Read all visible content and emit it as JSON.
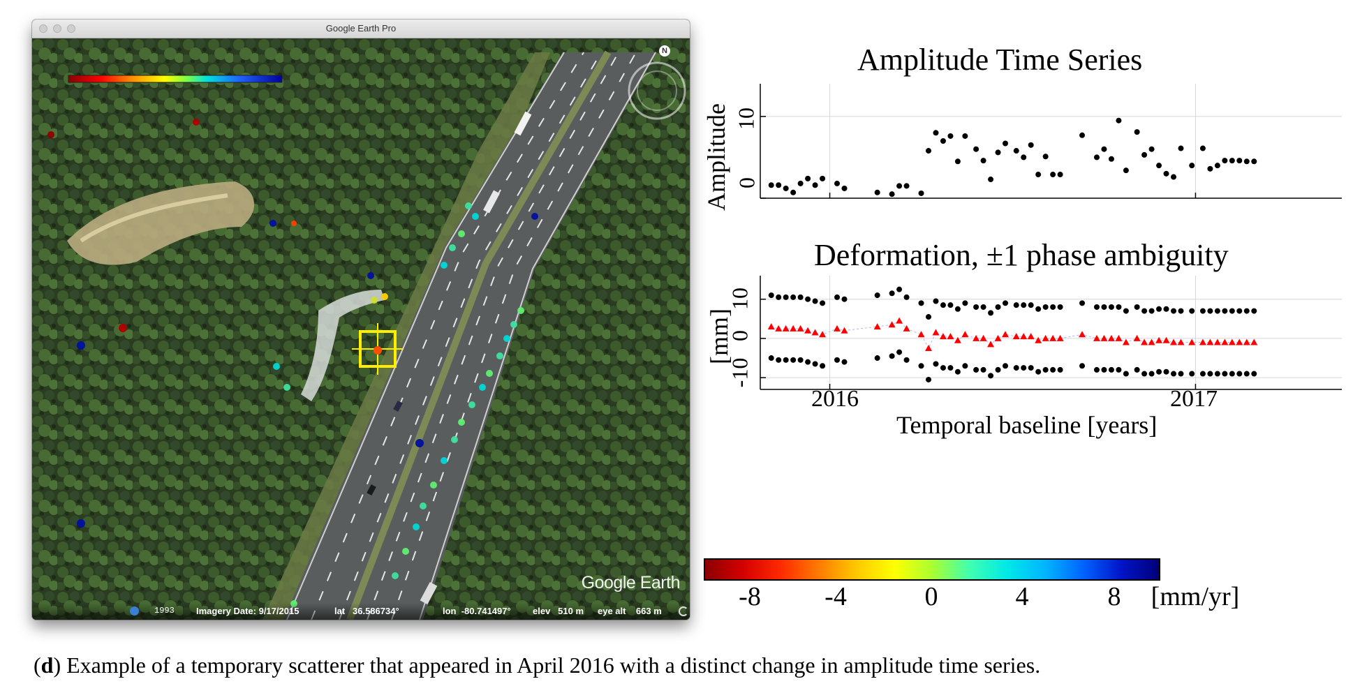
{
  "window": {
    "title": "Google Earth Pro",
    "map_legend_colors": [
      "#8b0000",
      "#ff0000",
      "#ff8c00",
      "#ffff00",
      "#7fff00",
      "#00e0e0",
      "#00bfff",
      "#1e64ff",
      "#0000a0"
    ]
  },
  "map": {
    "logo": "Google Earth",
    "statusbar": {
      "year": "1993",
      "imagery_date": "Imagery Date: 9/17/2015",
      "lat": "lat   36.586734°",
      "lon": "lon  -80.741497°",
      "elev": "elev   510 m",
      "eye_alt": "eye alt    663 m"
    }
  },
  "amplitude_chart": {
    "title": "Amplitude Time Series",
    "ylabel": "Amplitude",
    "y_ticks": [
      "0",
      "10"
    ]
  },
  "deformation_chart": {
    "title": "Deformation, ±1 phase ambiguity",
    "ylabel": "[mm]",
    "y_ticks": [
      "-10",
      "0",
      "10"
    ],
    "x_ticks": [
      "2016",
      "2017"
    ],
    "xlabel": "Temporal baseline [years]"
  },
  "colorbar": {
    "ticks": [
      "-8",
      "-4",
      "0",
      "4",
      "8"
    ],
    "unit": "[mm/yr]",
    "colors": [
      "#8b0000",
      "#d40000",
      "#ff2a00",
      "#ff7a00",
      "#ffc800",
      "#ffff00",
      "#aaff30",
      "#40ffb0",
      "#00e8e8",
      "#00b4ff",
      "#0064ff",
      "#0014c8",
      "#000078"
    ]
  },
  "caption": {
    "label": "d",
    "text": ") Example of a temporary scatterer that appeared in April 2016 with a distinct change in amplitude time series."
  },
  "chart_data": [
    {
      "type": "scatter",
      "title": "Amplitude Time Series",
      "xlabel": "",
      "ylabel": "Amplitude",
      "xlim": [
        2015.81,
        2017.4
      ],
      "ylim": [
        0,
        14
      ],
      "x_ticks": [
        2016,
        2017
      ],
      "y_ticks": [
        0,
        10
      ],
      "grid": true,
      "series": [
        {
          "x": [
            2015.84,
            2015.86,
            2015.88,
            2015.9,
            2015.92,
            2015.94,
            2015.96,
            2015.98,
            2016.02,
            2016.04,
            2016.13,
            2016.17,
            2016.19,
            2016.21,
            2016.25,
            2016.27,
            2016.29,
            2016.31,
            2016.33,
            2016.35,
            2016.37,
            2016.4,
            2016.42,
            2016.44,
            2016.46,
            2016.48,
            2016.51,
            2016.53,
            2016.55,
            2016.57,
            2016.59,
            2016.61,
            2016.63,
            2016.69,
            2016.73,
            2016.75,
            2016.77,
            2016.79,
            2016.81,
            2016.84,
            2016.86,
            2016.88,
            2016.9,
            2016.92,
            2016.94,
            2016.96,
            2016.99,
            2017.02,
            2017.04,
            2017.06,
            2017.08,
            2017.1,
            2017.12,
            2017.14,
            2017.16
          ],
          "y": [
            1.6,
            1.6,
            1.2,
            0.7,
            1.8,
            2.4,
            1.6,
            2.4,
            1.8,
            1.2,
            0.7,
            0.5,
            1.5,
            1.5,
            0.6,
            5.8,
            8.0,
            7.0,
            7.6,
            4.5,
            7.6,
            6.0,
            4.6,
            2.3,
            5.6,
            6.7,
            5.8,
            5.0,
            6.5,
            2.9,
            5.1,
            2.9,
            2.9,
            7.7,
            5.0,
            6.0,
            4.8,
            9.5,
            3.4,
            8.1,
            5.3,
            6.0,
            4.0,
            3.0,
            2.6,
            6.1,
            4.0,
            6.1,
            3.6,
            4.0,
            4.6,
            4.6,
            4.6,
            4.5,
            4.5
          ],
          "marker": "dot",
          "color": "#000000"
        }
      ]
    },
    {
      "type": "scatter",
      "title": "Deformation, ±1 phase ambiguity",
      "xlabel": "Temporal baseline [years]",
      "ylabel": "[mm]",
      "xlim": [
        2015.81,
        2017.4
      ],
      "ylim": [
        -13,
        16
      ],
      "x_ticks": [
        2016,
        2017
      ],
      "y_ticks": [
        -10,
        0,
        10
      ],
      "grid": true,
      "series": [
        {
          "x": [
            2015.84,
            2015.86,
            2015.88,
            2015.9,
            2015.92,
            2015.94,
            2015.96,
            2015.98,
            2016.02,
            2016.04,
            2016.13,
            2016.17,
            2016.19,
            2016.21,
            2016.25,
            2016.27,
            2016.29,
            2016.31,
            2016.33,
            2016.35,
            2016.37,
            2016.4,
            2016.42,
            2016.44,
            2016.46,
            2016.48,
            2016.51,
            2016.53,
            2016.55,
            2016.57,
            2016.59,
            2016.61,
            2016.63,
            2016.69,
            2016.73,
            2016.75,
            2016.77,
            2016.79,
            2016.81,
            2016.84,
            2016.86,
            2016.88,
            2016.9,
            2016.92,
            2016.94,
            2016.96,
            2016.99,
            2017.02,
            2017.04,
            2017.06,
            2017.08,
            2017.1,
            2017.12,
            2017.14,
            2017.16
          ],
          "y": [
            3.0,
            2.5,
            2.5,
            2.5,
            2.5,
            2.0,
            1.5,
            1.0,
            2.5,
            2.0,
            3.0,
            3.5,
            4.5,
            2.5,
            1.0,
            -2.5,
            1.5,
            0.5,
            0.5,
            -0.5,
            1.0,
            0.0,
            0.0,
            -1.5,
            0.0,
            1.0,
            0.5,
            0.5,
            0.5,
            -0.5,
            0.0,
            0.0,
            0.0,
            1.0,
            0.0,
            0.0,
            0.0,
            0.0,
            -1.0,
            0.0,
            -1.0,
            -1.0,
            -0.5,
            -0.5,
            -1.0,
            -1.0,
            -1.0,
            -1.0,
            -1.0,
            -1.0,
            -1.0,
            -1.0,
            -1.0,
            -1.0,
            -1.0
          ],
          "marker": "triangle",
          "color": "#ff0000",
          "connect": true
        },
        {
          "x": [
            2015.84,
            2015.86,
            2015.88,
            2015.9,
            2015.92,
            2015.94,
            2015.96,
            2015.98,
            2016.02,
            2016.04,
            2016.13,
            2016.17,
            2016.19,
            2016.21,
            2016.25,
            2016.27,
            2016.29,
            2016.31,
            2016.33,
            2016.35,
            2016.37,
            2016.4,
            2016.42,
            2016.44,
            2016.46,
            2016.48,
            2016.51,
            2016.53,
            2016.55,
            2016.57,
            2016.59,
            2016.61,
            2016.63,
            2016.69,
            2016.73,
            2016.75,
            2016.77,
            2016.79,
            2016.81,
            2016.84,
            2016.86,
            2016.88,
            2016.9,
            2016.92,
            2016.94,
            2016.96,
            2016.99,
            2017.02,
            2017.04,
            2017.06,
            2017.08,
            2017.1,
            2017.12,
            2017.14,
            2017.16
          ],
          "y": [
            11,
            10.5,
            10.5,
            10.5,
            10.5,
            10,
            9.5,
            9,
            10.5,
            10,
            11,
            11.5,
            12.5,
            10.5,
            9,
            5.5,
            9.5,
            8.5,
            8.5,
            7.5,
            9,
            8,
            8,
            6.5,
            8,
            9,
            8.5,
            8.5,
            8.5,
            7.5,
            8,
            8,
            8,
            9,
            8,
            8,
            8,
            8,
            7,
            8,
            7,
            7,
            7.5,
            7.5,
            7,
            7,
            7,
            7,
            7,
            7,
            7,
            7,
            7,
            7,
            7
          ],
          "marker": "dot",
          "color": "#000000"
        },
        {
          "x": [
            2015.84,
            2015.86,
            2015.88,
            2015.9,
            2015.92,
            2015.94,
            2015.96,
            2015.98,
            2016.02,
            2016.04,
            2016.13,
            2016.17,
            2016.19,
            2016.21,
            2016.25,
            2016.27,
            2016.29,
            2016.31,
            2016.33,
            2016.35,
            2016.37,
            2016.4,
            2016.42,
            2016.44,
            2016.46,
            2016.48,
            2016.51,
            2016.53,
            2016.55,
            2016.57,
            2016.59,
            2016.61,
            2016.63,
            2016.69,
            2016.73,
            2016.75,
            2016.77,
            2016.79,
            2016.81,
            2016.84,
            2016.86,
            2016.88,
            2016.9,
            2016.92,
            2016.94,
            2016.96,
            2016.99,
            2017.02,
            2017.04,
            2017.06,
            2017.08,
            2017.1,
            2017.12,
            2017.14,
            2017.16
          ],
          "y": [
            -5,
            -5.5,
            -5.5,
            -5.5,
            -5.5,
            -6,
            -6.5,
            -7,
            -5.5,
            -6,
            -5,
            -4.5,
            -3.5,
            -5.5,
            -7,
            -10.5,
            -6.5,
            -7.5,
            -7.5,
            -8.5,
            -7,
            -8,
            -8,
            -9.5,
            -8,
            -7,
            -7.5,
            -7.5,
            -7.5,
            -8.5,
            -8,
            -8,
            -8,
            -7,
            -8,
            -8,
            -8,
            -8,
            -9,
            -8,
            -9,
            -9,
            -8.5,
            -8.5,
            -9,
            -9,
            -9,
            -9,
            -9,
            -9,
            -9,
            -9,
            -9,
            -9,
            -9
          ],
          "marker": "dot",
          "color": "#000000"
        }
      ]
    }
  ]
}
